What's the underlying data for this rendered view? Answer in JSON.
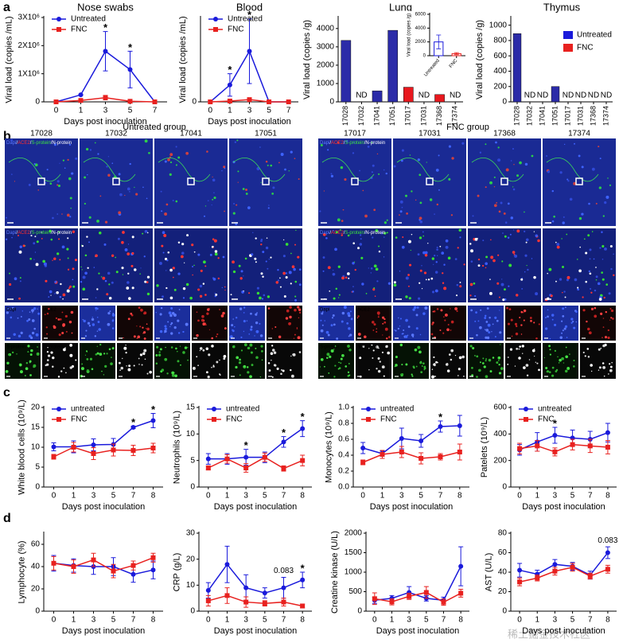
{
  "panel_labels": [
    "a",
    "b",
    "c",
    "d"
  ],
  "watermark": "稀土掘金技术社区",
  "panel_b": {
    "groups": [
      {
        "title": "Untreated group",
        "samples": [
          "17028",
          "17032",
          "17041",
          "17051"
        ]
      },
      {
        "title": "FNC group",
        "samples": [
          "17017",
          "17031",
          "17368",
          "17374"
        ]
      }
    ],
    "channels": [
      "Dapi",
      "ACE2",
      "S-protein",
      "N-protein"
    ],
    "channel_colors": [
      "#5a78ff",
      "#ff2b2b",
      "#3ee63e",
      "#ffffff"
    ],
    "separator": "/"
  },
  "chart_data": [
    {
      "type": "line",
      "title": "Nose swabs",
      "categories": [
        "0",
        "1",
        "3",
        "5",
        "7"
      ],
      "x_label": "Days post inoculation",
      "y_label": "Viral load (copies /mL)",
      "ylim": [
        0,
        3000000
      ],
      "yticks": [
        0,
        {
          "value": 1000000,
          "label": "1X10⁶"
        },
        {
          "value": 2000000,
          "label": "2X10⁶"
        },
        {
          "value": 3000000,
          "label": "3X10⁶"
        }
      ],
      "series": [
        {
          "name": "Untreated",
          "color": "#1a1adb",
          "marker": "circle",
          "values": [
            0,
            250000,
            1800000,
            1150000,
            0
          ],
          "errors": [
            0,
            20000,
            700000,
            650000,
            0
          ]
        },
        {
          "name": "FNC",
          "color": "#e8211f",
          "marker": "square",
          "values": [
            0,
            50000,
            150000,
            20000,
            0
          ],
          "errors": [
            0,
            50000,
            80000,
            20000,
            0
          ]
        }
      ],
      "annotations": [
        {
          "text": "*",
          "category": "3"
        },
        {
          "text": "*",
          "category": "5"
        }
      ]
    },
    {
      "type": "line",
      "title": "Blood",
      "categories": [
        "0",
        "1",
        "3",
        "5",
        "7"
      ],
      "x_label": "Days post inoculation",
      "y_label": "Viral load (copies /mL)",
      "ylim": [
        0,
        3000
      ],
      "yticks": [
        0
      ],
      "series": [
        {
          "name": "Untreated",
          "color": "#1a1adb",
          "marker": "circle",
          "values": [
            0,
            600,
            1800,
            0,
            0
          ],
          "errors": [
            0,
            400,
            1150,
            0,
            0
          ]
        },
        {
          "name": "FNC",
          "color": "#e8211f",
          "marker": "square",
          "values": [
            0,
            30,
            80,
            0,
            0
          ],
          "errors": [
            0,
            30,
            40,
            0,
            0
          ]
        }
      ],
      "annotations": [
        {
          "text": "*",
          "category": "1"
        },
        {
          "text": "*",
          "category": "3"
        }
      ]
    },
    {
      "type": "bar",
      "title": "Lung",
      "categories": [
        "17028",
        "17032",
        "17041",
        "17051",
        "17017",
        "17031",
        "17368",
        "17374"
      ],
      "values": [
        3350,
        null,
        600,
        3900,
        800,
        null,
        400,
        null
      ],
      "value_labels": [
        null,
        "ND",
        null,
        null,
        null,
        "ND",
        null,
        "ND"
      ],
      "colors": [
        "#2b2ba8",
        "#2b2ba8",
        "#2b2ba8",
        "#2b2ba8",
        "#e8181e",
        "#e8181e",
        "#e8181e",
        "#e8181e"
      ],
      "value_label_colors": [
        null,
        "#000000",
        null,
        null,
        null,
        "#e8181e",
        null,
        "#e8181e"
      ],
      "y_label": "Viral load (copies /g)",
      "ylim": [
        0,
        4600
      ],
      "yticks": [
        0,
        1000,
        2000,
        3000,
        4000
      ]
    },
    {
      "type": "bar",
      "style": "open",
      "categories": [
        "Untreated",
        "FNC"
      ],
      "values": [
        2000,
        300
      ],
      "errors": [
        1000,
        150
      ],
      "colors": [
        "#1a1adb",
        "#e8211f"
      ],
      "y_label": "Viral load (copies /g)",
      "ylim": [
        0,
        6000
      ],
      "yticks": [
        0,
        2000,
        4000,
        6000
      ]
    },
    {
      "type": "bar",
      "title": "Thymus",
      "categories": [
        "17028",
        "17032",
        "17041",
        "17051",
        "17017",
        "17031",
        "17368",
        "17374"
      ],
      "values": [
        890,
        null,
        null,
        200,
        null,
        null,
        null,
        null
      ],
      "value_labels": [
        null,
        "ND",
        "ND",
        null,
        "ND",
        "ND",
        "ND",
        "ND"
      ],
      "colors": [
        "#2b2ba8",
        "#2b2ba8",
        "#2b2ba8",
        "#2b2ba8",
        "#e8181e",
        "#e8181e",
        "#e8181e",
        "#e8181e"
      ],
      "value_label_colors": [
        null,
        "#000000",
        "#000000",
        null,
        "#e8181e",
        "#e8181e",
        "#e8181e",
        "#e8181e"
      ],
      "y_label": "Viral load (copies /g)",
      "ylim": [
        0,
        1100
      ],
      "yticks": [
        0,
        200,
        400,
        600,
        800,
        1000
      ],
      "legend_entries": [
        {
          "name": "Untreated",
          "color": "#1a1adb"
        },
        {
          "name": "FNC",
          "color": "#e8211f"
        }
      ]
    },
    {
      "type": "line",
      "categories": [
        "0",
        "1",
        "3",
        "5",
        "7",
        "8"
      ],
      "x_label": "Days post inoculation",
      "y_label": "White blood cells (10⁹/L)",
      "ylim": [
        0,
        20
      ],
      "yticks": [
        0,
        5,
        10,
        15,
        20
      ],
      "series": [
        {
          "name": "untreated",
          "color": "#1a1adb",
          "marker": "circle",
          "values": [
            10.1,
            10.1,
            10.6,
            10.7,
            15,
            16.7
          ],
          "errors": [
            1,
            1.5,
            1.5,
            1.5,
            0.3,
            1.8
          ]
        },
        {
          "name": "FNC",
          "color": "#e8211f",
          "marker": "square",
          "values": [
            7.6,
            10,
            8.4,
            9.3,
            9.2,
            9.8
          ],
          "errors": [
            0.6,
            1.2,
            1.5,
            1.5,
            1.3,
            1.2
          ]
        }
      ],
      "annotations": [
        {
          "text": "*",
          "category": "7"
        },
        {
          "text": "*",
          "category": "8"
        }
      ]
    },
    {
      "type": "line",
      "categories": [
        "0",
        "1",
        "3",
        "5",
        "7",
        "8"
      ],
      "x_label": "Days post inoculation",
      "y_label": "Neutrophils (10⁹/L)",
      "ylim": [
        0,
        15
      ],
      "yticks": [
        0,
        5,
        10,
        15
      ],
      "series": [
        {
          "name": "untreated",
          "color": "#1a1adb",
          "marker": "circle",
          "values": [
            5.3,
            5.3,
            5.6,
            5.6,
            8.5,
            11
          ],
          "errors": [
            1,
            1,
            1.5,
            1,
            1,
            1.5
          ]
        },
        {
          "name": "FNC",
          "color": "#e8211f",
          "marker": "square",
          "values": [
            3.6,
            5.3,
            3.6,
            5.6,
            3.5,
            5
          ],
          "errors": [
            0.4,
            0.8,
            0.8,
            0.8,
            0.5,
            1
          ]
        }
      ],
      "annotations": [
        {
          "text": "*",
          "category": "3"
        },
        {
          "text": "*",
          "category": "7"
        },
        {
          "text": "*",
          "category": "8"
        }
      ]
    },
    {
      "type": "line",
      "categories": [
        "0",
        "1",
        "3",
        "5",
        "7",
        "8"
      ],
      "x_label": "Days post inoculation",
      "y_label": "Monocytes (10⁹/L)",
      "ylim": [
        0,
        1
      ],
      "yticks": [
        {
          "value": 0,
          "label": "0.0"
        },
        0.2,
        0.4,
        0.6,
        0.8,
        {
          "value": 1,
          "label": "1.0"
        }
      ],
      "series": [
        {
          "name": "untreated",
          "color": "#1a1adb",
          "marker": "circle",
          "values": [
            0.49,
            0.42,
            0.61,
            0.58,
            0.76,
            0.77
          ],
          "errors": [
            0.07,
            0.03,
            0.13,
            0.08,
            0.07,
            0.13
          ]
        },
        {
          "name": "FNC",
          "color": "#e8211f",
          "marker": "square",
          "values": [
            0.31,
            0.41,
            0.44,
            0.36,
            0.38,
            0.44
          ],
          "errors": [
            0.03,
            0.05,
            0.07,
            0.07,
            0.04,
            0.1
          ]
        }
      ],
      "annotations": [
        {
          "text": "*",
          "category": "7"
        }
      ]
    },
    {
      "type": "line",
      "categories": [
        "0",
        "1",
        "3",
        "5",
        "7",
        "8"
      ],
      "x_label": "Days post inoculation",
      "y_label": "Patelets (10⁹/L)",
      "ylim": [
        0,
        600
      ],
      "yticks": [
        0,
        200,
        400,
        600
      ],
      "series": [
        {
          "name": "untreated",
          "color": "#1a1adb",
          "marker": "circle",
          "values": [
            280,
            340,
            390,
            370,
            360,
            410
          ],
          "errors": [
            40,
            70,
            60,
            60,
            60,
            70
          ]
        },
        {
          "name": "FNC",
          "color": "#e8211f",
          "marker": "square",
          "values": [
            290,
            310,
            265,
            320,
            310,
            300
          ],
          "errors": [
            40,
            40,
            30,
            40,
            50,
            50
          ]
        }
      ],
      "annotations": [
        {
          "text": "*",
          "category": "3"
        }
      ]
    },
    {
      "type": "line",
      "categories": [
        "0",
        "1",
        "3",
        "5",
        "7",
        "8"
      ],
      "x_label": "Days post inoculation",
      "y_label": "Lymphocyte (%)",
      "ylim": [
        0,
        70
      ],
      "yticks": [
        0,
        20,
        40,
        60
      ],
      "series": [
        {
          "color": "#1a1adb",
          "marker": "circle",
          "values": [
            43,
            41,
            40,
            40,
            33,
            37
          ],
          "errors": [
            7,
            6,
            7,
            8,
            7,
            8
          ]
        },
        {
          "color": "#e8211f",
          "marker": "square",
          "values": [
            43,
            40,
            46,
            36,
            41,
            48
          ],
          "errors": [
            6,
            6,
            6,
            6,
            4,
            4
          ]
        }
      ]
    },
    {
      "type": "line",
      "categories": [
        "0",
        "1",
        "3",
        "5",
        "7",
        "8"
      ],
      "x_label": "Days post inoculation",
      "y_label": "CRP (g/L)",
      "ylim": [
        0,
        30
      ],
      "yticks": [
        0,
        10,
        20,
        30
      ],
      "series": [
        {
          "color": "#1a1adb",
          "marker": "circle",
          "values": [
            8,
            18,
            9,
            7,
            9,
            12
          ],
          "errors": [
            3,
            7,
            5,
            2,
            4,
            3
          ]
        },
        {
          "color": "#e8211f",
          "marker": "square",
          "values": [
            4,
            6,
            3.5,
            3,
            3.5,
            2
          ],
          "errors": [
            2,
            3,
            2,
            1,
            1.5,
            0.7
          ]
        }
      ],
      "annotations": [
        {
          "text": "0.083",
          "category": "7"
        },
        {
          "text": "*",
          "category": "8"
        }
      ]
    },
    {
      "type": "line",
      "categories": [
        "0",
        "1",
        "3",
        "5",
        "7",
        "8"
      ],
      "x_label": "Days post inoculation",
      "y_label": "Creatine kinase (U/L)",
      "ylim": [
        0,
        2000
      ],
      "yticks": [
        0,
        500,
        1000,
        1500,
        2000
      ],
      "series": [
        {
          "color": "#1a1adb",
          "marker": "circle",
          "values": [
            280,
            330,
            480,
            330,
            280,
            1150
          ],
          "errors": [
            80,
            70,
            150,
            70,
            80,
            500
          ]
        },
        {
          "color": "#e8211f",
          "marker": "square",
          "values": [
            320,
            240,
            380,
            480,
            230,
            460
          ],
          "errors": [
            150,
            80,
            80,
            150,
            80,
            100
          ]
        }
      ]
    },
    {
      "type": "line",
      "categories": [
        "0",
        "1",
        "3",
        "5",
        "7",
        "8"
      ],
      "x_label": "Days post inoculation",
      "y_label": "AST (U/L)",
      "ylim": [
        0,
        80
      ],
      "yticks": [
        0,
        20,
        40,
        60,
        80
      ],
      "series": [
        {
          "color": "#1a1adb",
          "marker": "circle",
          "values": [
            42,
            38,
            48,
            46,
            37,
            60
          ],
          "errors": [
            7,
            4,
            5,
            4,
            4,
            6
          ]
        },
        {
          "color": "#e8211f",
          "marker": "square",
          "values": [
            30,
            34,
            41,
            45,
            36,
            43
          ],
          "errors": [
            4,
            3,
            4,
            4,
            3,
            4
          ]
        }
      ],
      "annotations": [
        {
          "text": "0.083",
          "category": "8"
        }
      ]
    }
  ]
}
